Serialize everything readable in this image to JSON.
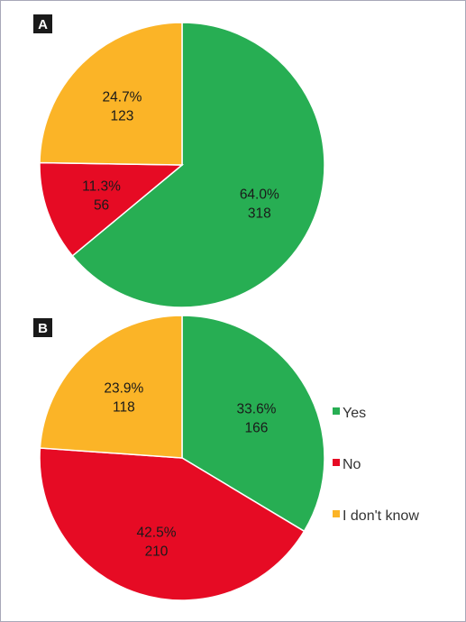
{
  "chart_data": [
    {
      "type": "pie",
      "panel": "A",
      "title": "",
      "slices": [
        {
          "label": "Yes",
          "value": 318,
          "percent_label": "64.0%",
          "count_label": "318",
          "color": "#27ae53"
        },
        {
          "label": "No",
          "value": 56,
          "percent_label": "11.3%",
          "count_label": "56",
          "color": "#e60b24"
        },
        {
          "label": "I don't know",
          "value": 123,
          "percent_label": "24.7%",
          "count_label": "123",
          "color": "#fbb427"
        }
      ]
    },
    {
      "type": "pie",
      "panel": "B",
      "title": "",
      "slices": [
        {
          "label": "Yes",
          "value": 166,
          "percent_label": "33.6%",
          "count_label": "166",
          "color": "#27ae53"
        },
        {
          "label": "No",
          "value": 210,
          "percent_label": "42.5%",
          "count_label": "210",
          "color": "#e60b24"
        },
        {
          "label": "I don't know",
          "value": 118,
          "percent_label": "23.9%",
          "count_label": "118",
          "color": "#fbb427"
        }
      ]
    }
  ],
  "legend": {
    "placement": "right of panel B",
    "items": [
      {
        "label": "Yes",
        "color": "#27ae53"
      },
      {
        "label": "No",
        "color": "#e60b24"
      },
      {
        "label": "I don't know",
        "color": "#fbb427"
      }
    ]
  }
}
